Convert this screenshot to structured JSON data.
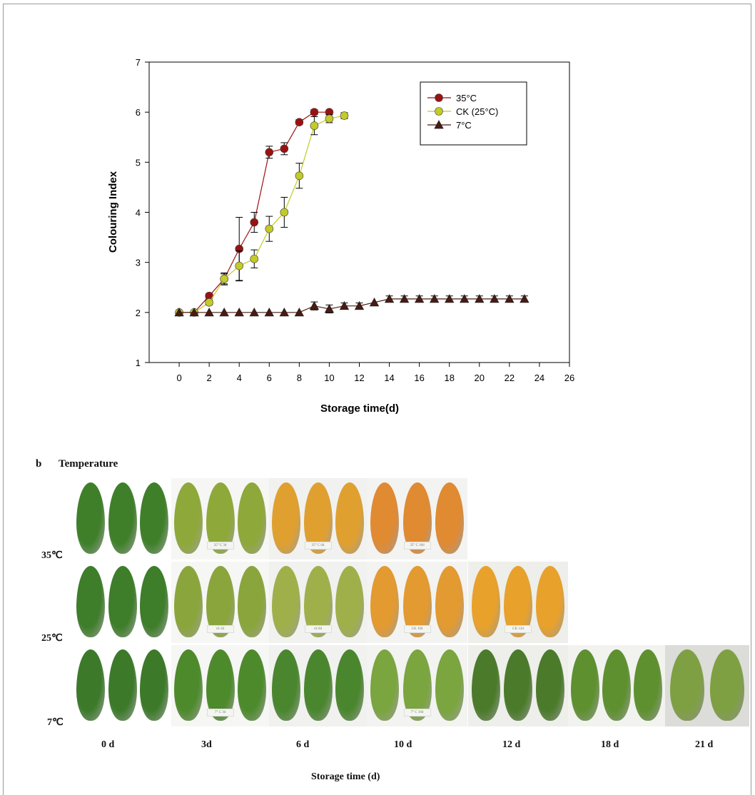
{
  "chart_data": {
    "type": "line",
    "xlabel": "Storage time(d)",
    "ylabel": "Colouring Index",
    "xlim": [
      -2,
      26
    ],
    "ylim": [
      1,
      7
    ],
    "xticks": [
      0,
      2,
      4,
      6,
      8,
      10,
      12,
      14,
      16,
      18,
      20,
      22,
      24,
      26
    ],
    "yticks": [
      1,
      2,
      3,
      4,
      5,
      6,
      7
    ],
    "legend_position": "top-right",
    "series": [
      {
        "name": "35°C",
        "color": "#9b1111",
        "marker": "circle",
        "x": [
          0,
          1,
          2,
          3,
          4,
          5,
          6,
          7,
          8,
          9,
          10
        ],
        "y": [
          2.0,
          2.0,
          2.33,
          2.67,
          3.27,
          3.8,
          5.2,
          5.27,
          5.8,
          6.0,
          6.0
        ],
        "err": [
          0,
          0,
          0.05,
          0.12,
          0.63,
          0.2,
          0.12,
          0.12,
          0.05,
          0.05,
          0.0
        ]
      },
      {
        "name": "CK (25°C)",
        "color": "#c2cb27",
        "marker": "circle",
        "x": [
          0,
          1,
          2,
          3,
          4,
          5,
          6,
          7,
          8,
          9,
          10,
          11
        ],
        "y": [
          2.0,
          2.0,
          2.2,
          2.67,
          2.93,
          3.07,
          3.67,
          4.0,
          4.73,
          5.73,
          5.87,
          5.93
        ],
        "err": [
          0,
          0,
          0.05,
          0.1,
          0.3,
          0.18,
          0.25,
          0.3,
          0.25,
          0.18,
          0.08,
          0.06
        ]
      },
      {
        "name": "7°C",
        "color": "#4a1a12",
        "marker": "triangle",
        "x": [
          0,
          1,
          2,
          3,
          4,
          5,
          6,
          7,
          8,
          9,
          10,
          11,
          12,
          13,
          14,
          15,
          16,
          17,
          18,
          19,
          20,
          21,
          22,
          23
        ],
        "y": [
          2.0,
          2.0,
          2.0,
          2.0,
          2.0,
          2.0,
          2.0,
          2.0,
          2.0,
          2.13,
          2.07,
          2.13,
          2.13,
          2.2,
          2.27,
          2.27,
          2.27,
          2.27,
          2.27,
          2.27,
          2.27,
          2.27,
          2.27,
          2.27
        ],
        "err": [
          0,
          0,
          0,
          0,
          0,
          0,
          0,
          0,
          0,
          0.08,
          0.08,
          0.06,
          0.06,
          0,
          0.06,
          0.06,
          0.06,
          0.06,
          0.06,
          0.06,
          0.06,
          0.06,
          0.06,
          0.06
        ]
      }
    ]
  },
  "panel_b": {
    "label": "b",
    "title": "Temperature",
    "rows": [
      {
        "label": "35℃",
        "tint": [
          "#3f7f2a",
          "#8ea83a",
          "#e0a030",
          "#e08a32"
        ],
        "tags": [
          "",
          "35° C 3d",
          "35° C 6d",
          "35° C 10d"
        ]
      },
      {
        "label": "25℃",
        "tint": [
          "#3e7d2a",
          "#8aa53b",
          "#9fb04a",
          "#e39a31",
          "#e8a12b"
        ],
        "tags": [
          "",
          "ck 3d",
          "ck 6d",
          "CK 10d",
          "CK 12d"
        ]
      },
      {
        "label": "7℃",
        "tint": [
          "#3c7a2a",
          "#4d8a2c",
          "#4a862e",
          "#7aa53f",
          "#4a7a2a",
          "#5e9030",
          "#7ea043"
        ],
        "tags": [
          "",
          "7° C 3d",
          "",
          "7° C 10d",
          "",
          "",
          ""
        ]
      }
    ],
    "columns": [
      "0 d",
      "3d",
      "6 d",
      "10 d",
      "12 d",
      "18 d",
      "21 d"
    ],
    "xlabel": "Storage time (d)"
  }
}
